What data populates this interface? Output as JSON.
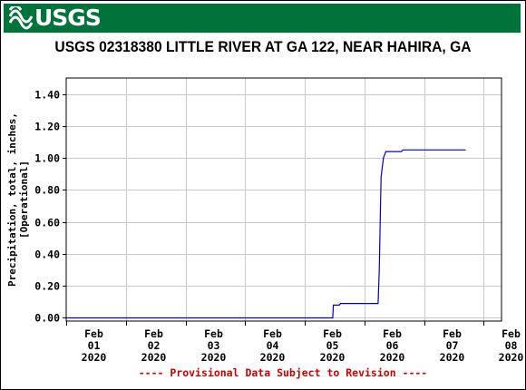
{
  "header": {
    "logo_text": "USGS",
    "brand_color": "#00733a"
  },
  "chart_data": {
    "type": "line",
    "title": "USGS 02318380 LITTLE RIVER AT GA 122, NEAR HAHIRA, GA",
    "xlabel": "",
    "ylabel_lines": [
      "Precipitation, total, inches,",
      "[Operational]"
    ],
    "ylim": [
      -0.02,
      1.5
    ],
    "xlim": [
      0,
      7.3
    ],
    "yticks": [
      0,
      0.2,
      0.4,
      0.6,
      0.8,
      1.0,
      1.2,
      1.4
    ],
    "ytick_labels": [
      "0.00",
      "0.20",
      "0.40",
      "0.60",
      "0.80",
      "1.00",
      "1.20",
      "1.40"
    ],
    "xticks": [
      {
        "pos": 0,
        "label": [
          "Feb",
          "01",
          "2020"
        ]
      },
      {
        "pos": 1,
        "label": [
          "Feb",
          "02",
          "2020"
        ]
      },
      {
        "pos": 2,
        "label": [
          "Feb",
          "03",
          "2020"
        ]
      },
      {
        "pos": 3,
        "label": [
          "Feb",
          "04",
          "2020"
        ]
      },
      {
        "pos": 4,
        "label": [
          "Feb",
          "05",
          "2020"
        ]
      },
      {
        "pos": 5,
        "label": [
          "Feb",
          "06",
          "2020"
        ]
      },
      {
        "pos": 6,
        "label": [
          "Feb",
          "07",
          "2020"
        ]
      },
      {
        "pos": 7,
        "label": [
          "Feb",
          "08",
          "2020"
        ]
      }
    ],
    "grid": true,
    "series": [
      {
        "color": "#0000cc",
        "x": [
          0,
          4.47,
          4.48,
          4.58,
          4.6,
          5.23,
          5.25,
          5.28,
          5.32,
          5.36,
          5.62,
          5.65,
          6.2,
          6.7
        ],
        "y": [
          0.0,
          0.0,
          0.08,
          0.08,
          0.09,
          0.09,
          0.3,
          0.88,
          1.0,
          1.04,
          1.04,
          1.05,
          1.05,
          1.05
        ]
      }
    ],
    "footnote": "---- Provisional Data Subject to Revision ----",
    "footnote_color": "#cc0000"
  }
}
